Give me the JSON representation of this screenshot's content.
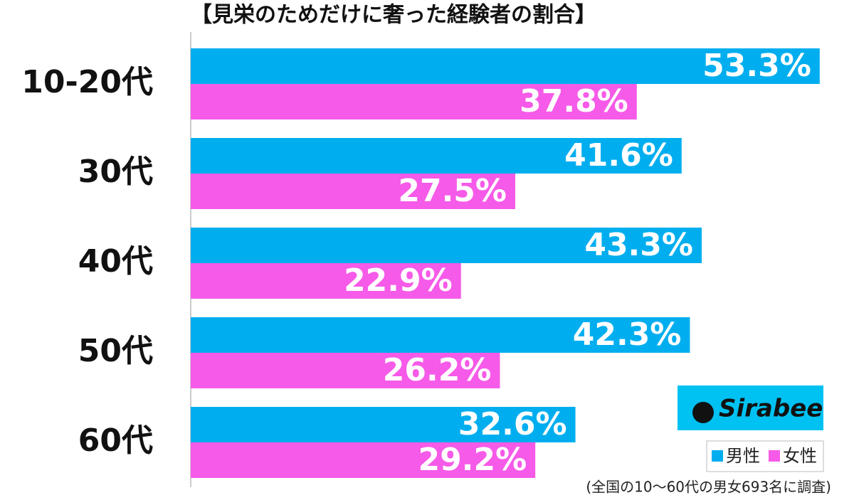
{
  "chart_data": {
    "type": "hbar",
    "title": "【見栄のためだけに奢った経験者の割合】",
    "categories": [
      "10-20代",
      "30代",
      "40代",
      "50代",
      "60代"
    ],
    "series": [
      {
        "name": "男性",
        "color": "#00aeef",
        "values": [
          53.3,
          41.6,
          43.3,
          42.3,
          32.6
        ],
        "value_labels": [
          "53.3%",
          "41.6%",
          "43.3%",
          "42.3%",
          "32.6%"
        ]
      },
      {
        "name": "女性",
        "color": "#f65ae8",
        "values": [
          37.8,
          27.5,
          22.9,
          26.2,
          29.2
        ],
        "value_labels": [
          "37.8%",
          "27.5%",
          "22.9%",
          "26.2%",
          "29.2%"
        ]
      }
    ],
    "xlim": [
      0,
      55
    ],
    "logo": "Sirabee",
    "note": "(全国の10～60代の男女693名に調査)"
  }
}
